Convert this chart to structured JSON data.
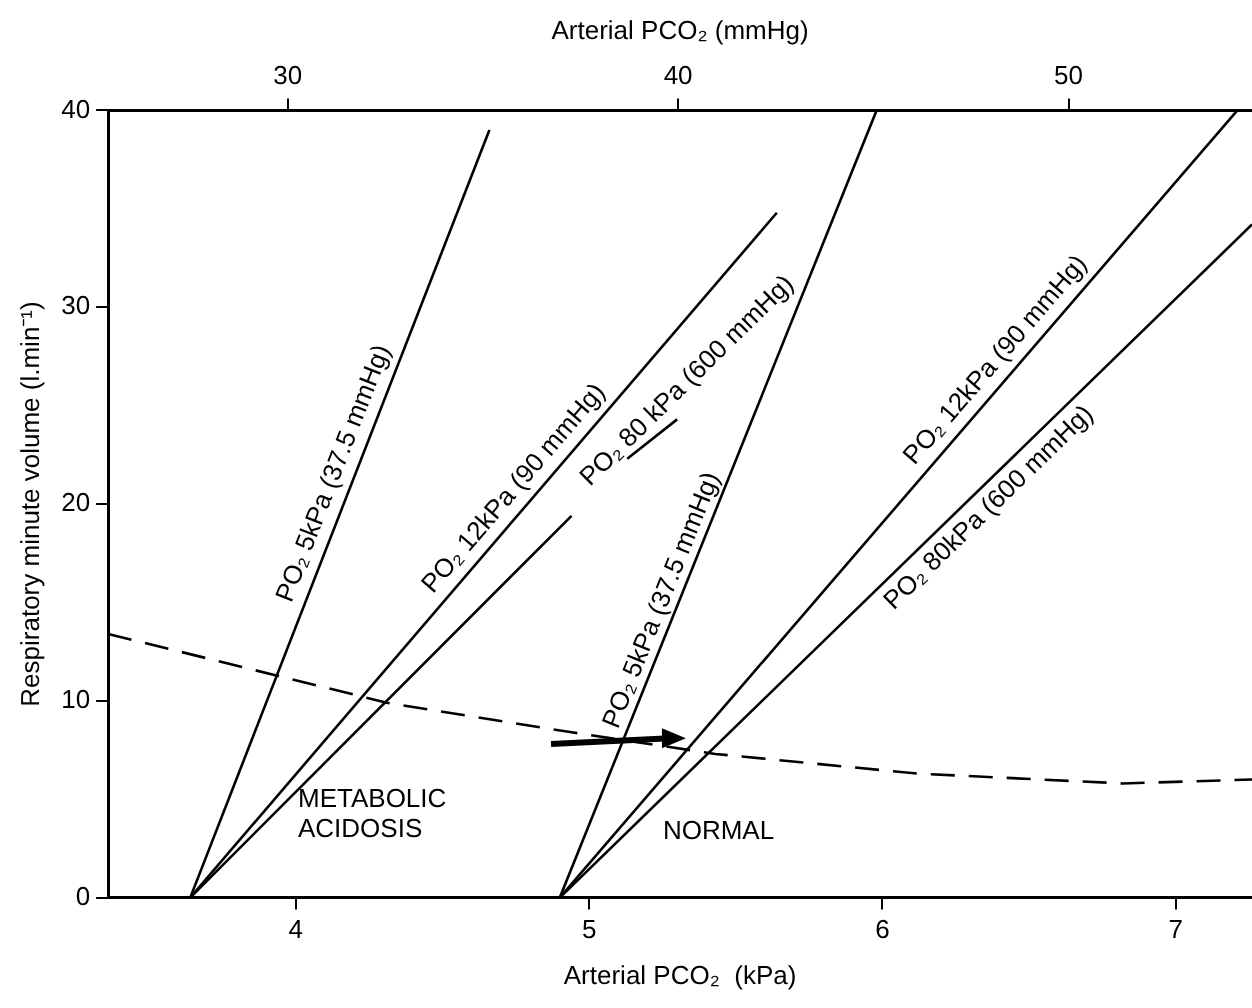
{
  "chart_data": {
    "type": "line",
    "xlabel": "Arterial PCO₂  (kPa)",
    "x2label": "Arterial PCO₂ (mmHg)",
    "ylabel": "Respiratory minute volume (l.min⁻¹)",
    "xlim": [
      3.36,
      7.26
    ],
    "xticks": [
      4,
      5,
      6,
      7
    ],
    "x2lim": [
      25.4,
      54.7
    ],
    "x2ticks": [
      30,
      40,
      50
    ],
    "ylim": [
      0,
      40
    ],
    "yticks": [
      0,
      10,
      20,
      30,
      40
    ],
    "marker": "none",
    "series": [
      {
        "name": "PO₂ 5kPa (37.5 mmHg)",
        "color": "#000000",
        "x": [
          3.64,
          4.66
        ],
        "values": [
          0,
          39
        ]
      },
      {
        "name": "PO₂ 12kPa (90 mmHg)",
        "color": "#000000",
        "x": [
          3.64,
          5.64
        ],
        "values": [
          0,
          34.8
        ]
      },
      {
        "name": "PO₂ 80 kPa (600 mmHg)",
        "color": "#000000",
        "x": [
          3.64,
          4.94,
          5.03,
          5.13,
          5.3
        ],
        "values": [
          0,
          19.4,
          null,
          22.3,
          24.3
        ]
      },
      {
        "name": "PO₂ 5kPa (37.5 mmHg)",
        "color": "#000000",
        "x": [
          4.9,
          5.98
        ],
        "values": [
          0,
          40
        ]
      },
      {
        "name": "PO₂ 12kPa (90 mmHg)",
        "color": "#000000",
        "x": [
          4.9,
          7.21
        ],
        "values": [
          0,
          40
        ]
      },
      {
        "name": "PO₂ 80kPa (600 mmHg)",
        "color": "#000000",
        "x": [
          4.9,
          7.26
        ],
        "values": [
          0,
          34.2
        ]
      },
      {
        "color": "#000000",
        "line_style": "dashed",
        "x": [
          3.36,
          3.93,
          4.31,
          4.94,
          5.43,
          6.12,
          6.82,
          7.26
        ],
        "values": [
          13.4,
          11.3,
          9.9,
          8.4,
          7.3,
          6.3,
          5.8,
          6
        ]
      }
    ],
    "annotations": [
      "METABOLIC\nACIDOSIS",
      "NORMAL"
    ]
  }
}
